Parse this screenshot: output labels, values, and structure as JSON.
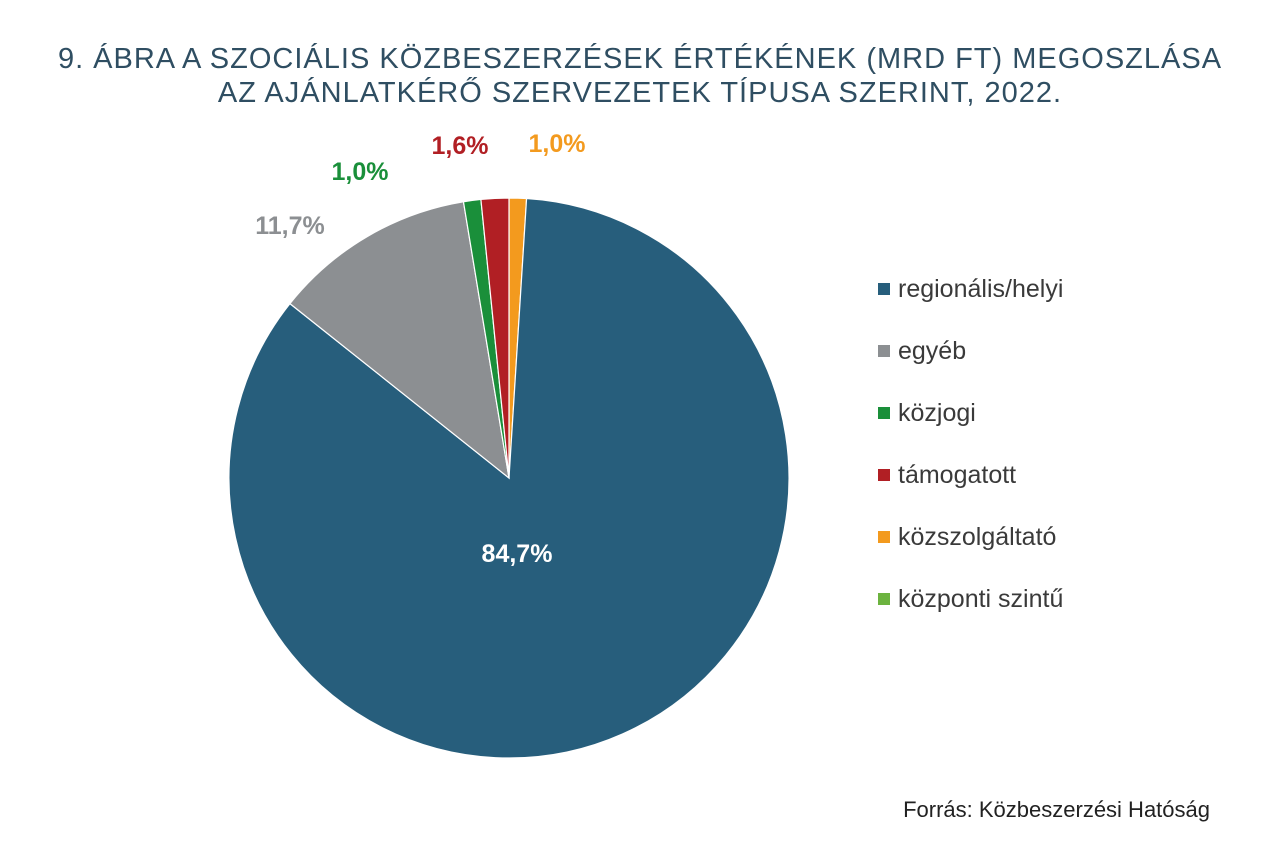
{
  "title": {
    "line1": "9. ÁBRA A SZOCIÁLIS KÖZBESZERZÉSEK ÉRTÉKÉNEK (MRD FT) MEGOSZLÁSA",
    "line2": "AZ AJÁNLATKÉRŐ SZERVEZETEK TÍPUSA SZERINT, 2022."
  },
  "source": "Forrás: Közbeszerzési Hatóság",
  "chart_data": {
    "type": "pie",
    "title": "9. ÁBRA A SZOCIÁLIS KÖZBESZERZÉSEK ÉRTÉKÉNEK (MRD FT) MEGOSZLÁSA AZ AJÁNLATKÉRŐ SZERVEZETEK TÍPUSA SZERINT, 2022.",
    "start_angle_deg": 0,
    "direction": "clockwise",
    "legend_position": "right",
    "slices": [
      {
        "name": "közszolgáltató",
        "value": 1.0,
        "label": "1,0%",
        "color": "#f39a1e",
        "label_color": "#f39a1e"
      },
      {
        "name": "regionális/helyi",
        "value": 84.7,
        "label": "84,7%",
        "color": "#275e7c",
        "label_color": "#ffffff"
      },
      {
        "name": "egyéb",
        "value": 11.7,
        "label": "11,7%",
        "color": "#8c8f92",
        "label_color": "#8c8f92"
      },
      {
        "name": "közjogi",
        "value": 1.0,
        "label": "1,0%",
        "color": "#1a8f3a",
        "label_color": "#1a8f3a"
      },
      {
        "name": "támogatott",
        "value": 1.6,
        "label": "1,6%",
        "color": "#b11f24",
        "label_color": "#b11f24"
      }
    ],
    "legend": [
      {
        "name": "regionális/helyi",
        "color": "#275e7c"
      },
      {
        "name": "egyéb",
        "color": "#8c8f92"
      },
      {
        "name": "közjogi",
        "color": "#1a8f3a"
      },
      {
        "name": "támogatott",
        "color": "#b11f24"
      },
      {
        "name": "közszolgáltató",
        "color": "#f39a1e"
      },
      {
        "name": "központi szintű",
        "color": "#6cb33f"
      }
    ]
  }
}
